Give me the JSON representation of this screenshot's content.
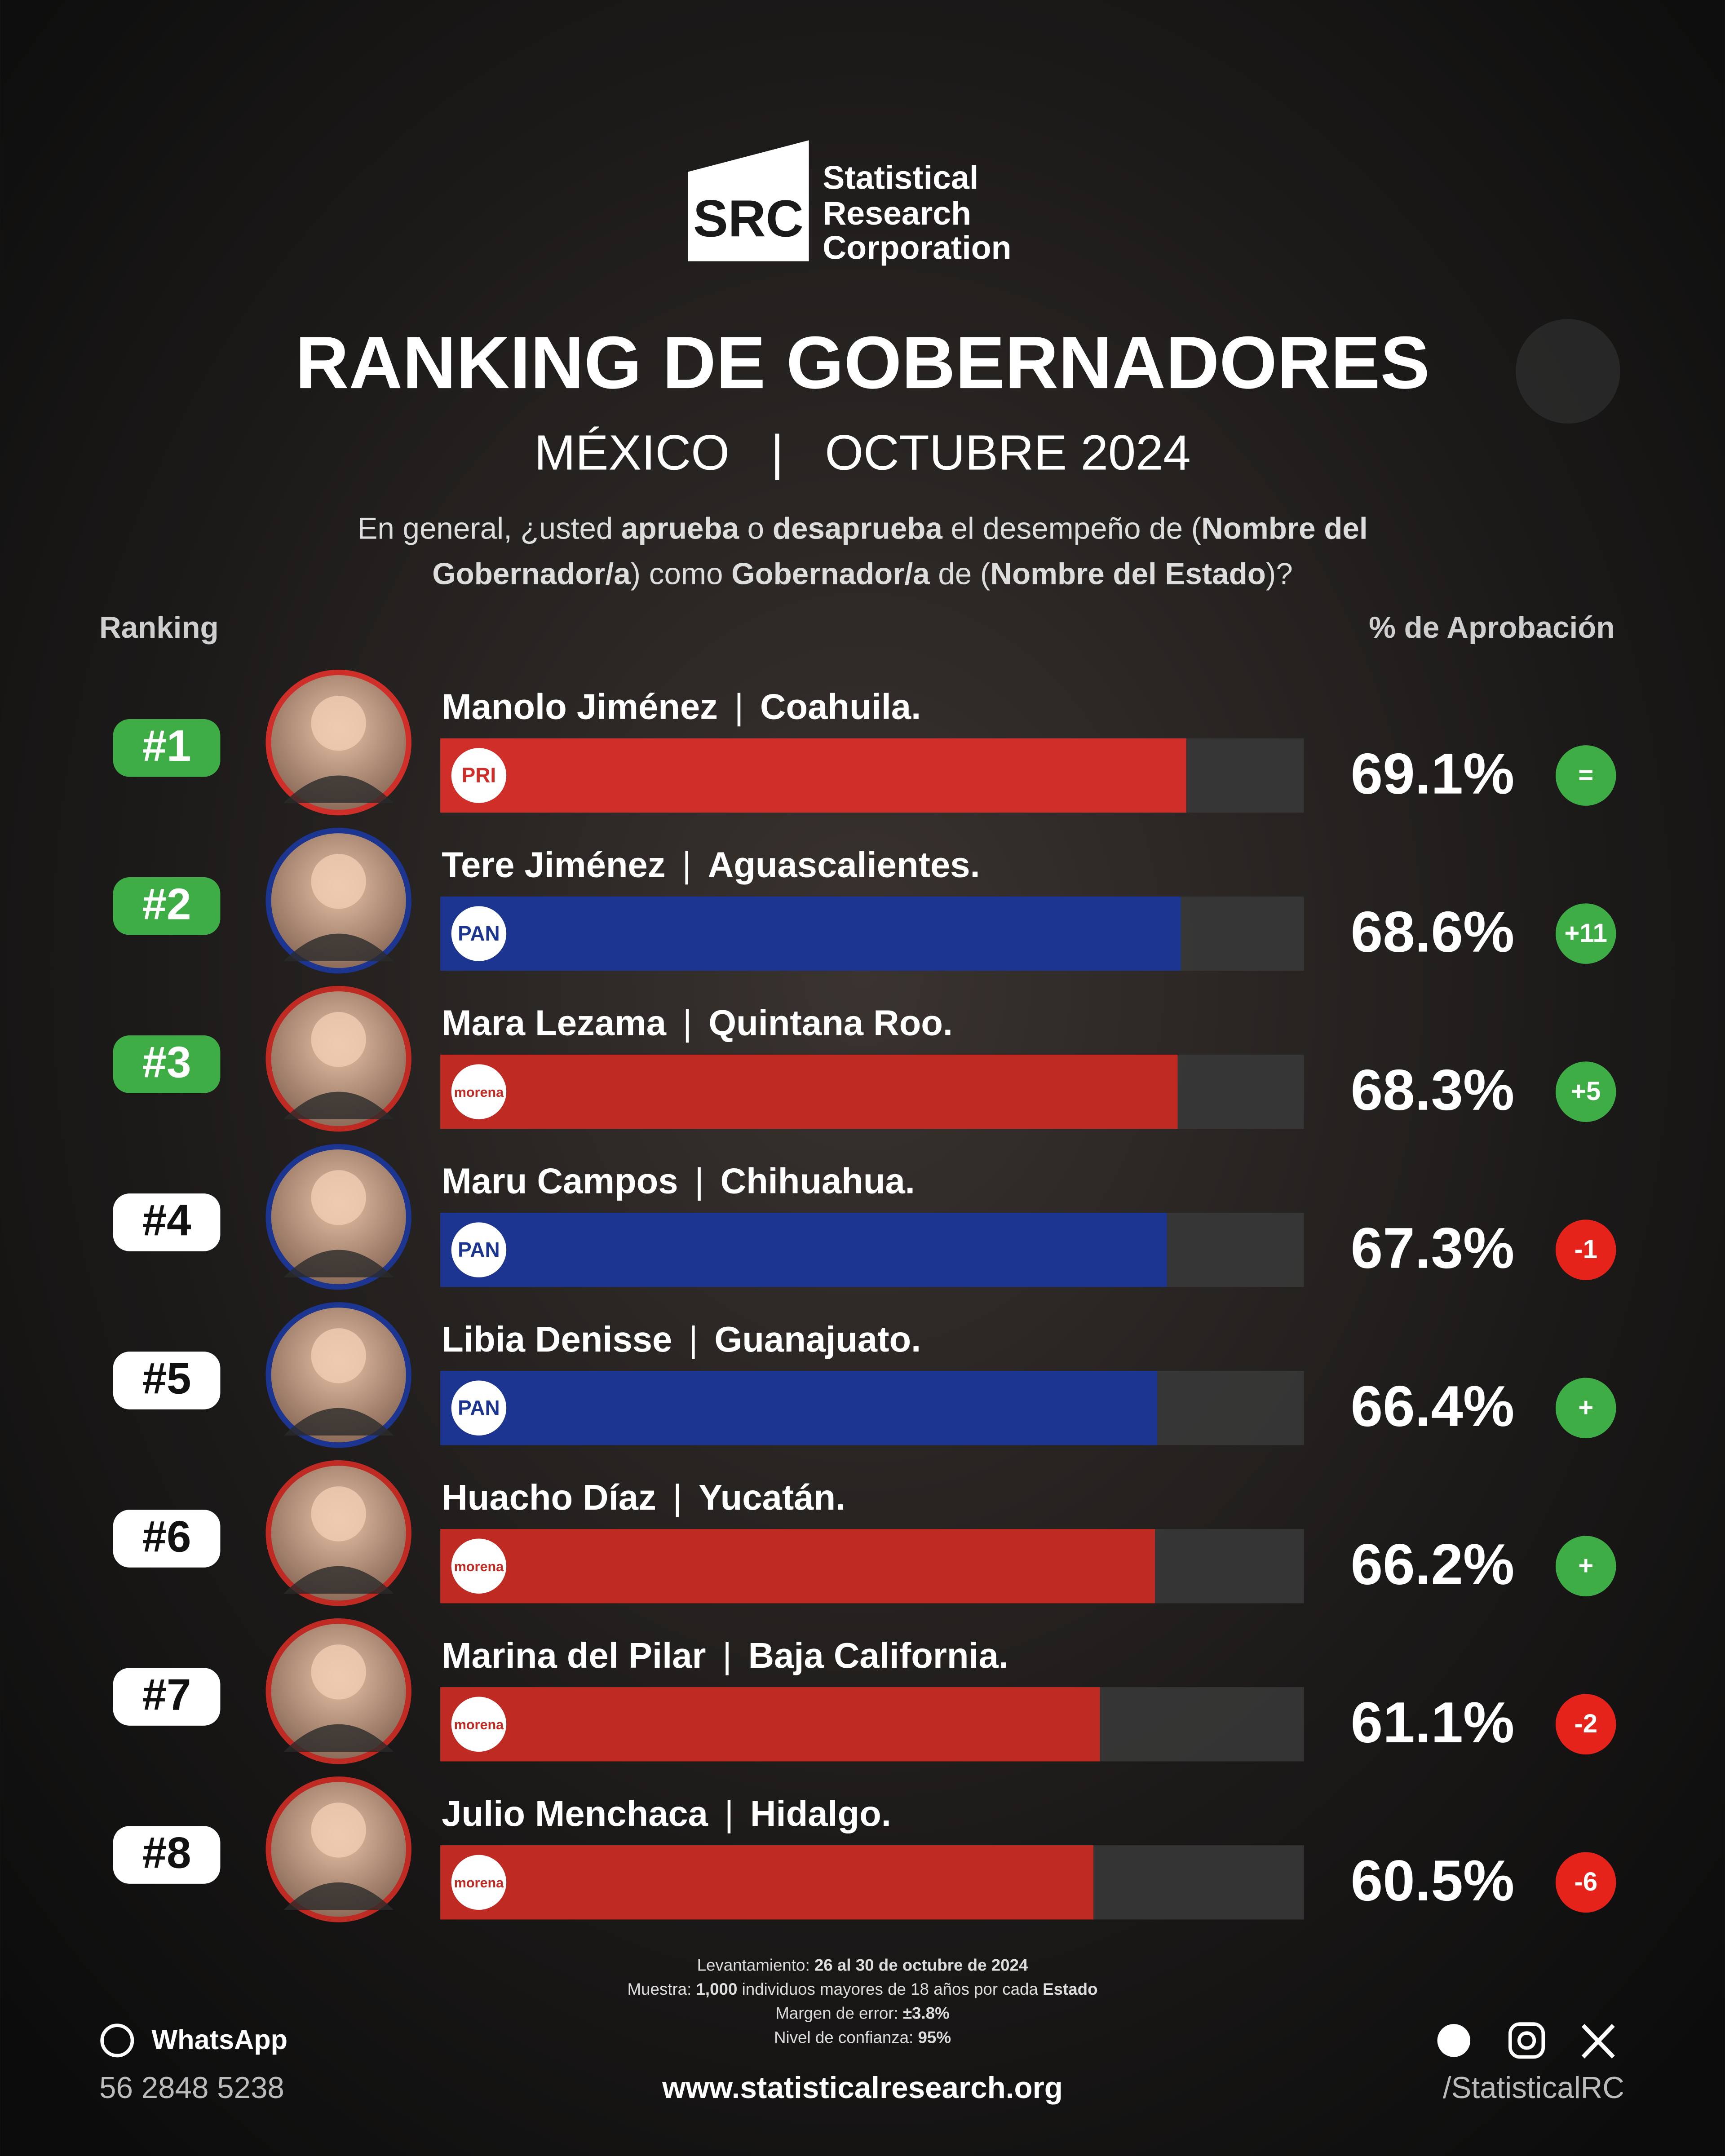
{
  "brand": {
    "logo": "SRC",
    "name": [
      "Statistical",
      "Research",
      "Corporation"
    ]
  },
  "chart_data": {
    "type": "bar",
    "orientation": "horizontal",
    "title": "RANKING DE GOBERNADORES",
    "subtitle": "MÉXICO   |   OCTUBRE 2024",
    "question": [
      [
        {
          "text": "En general, ¿usted ",
          "bold": false
        },
        {
          "text": "aprueba",
          "bold": true
        },
        {
          "text": " o ",
          "bold": false
        },
        {
          "text": "desaprueba",
          "bold": true
        },
        {
          "text": " el desempeño de (",
          "bold": false
        },
        {
          "text": "Nombre del",
          "bold": true
        }
      ],
      [
        {
          "text": "Gobernador/a",
          "bold": true
        },
        {
          "text": ") como ",
          "bold": false
        },
        {
          "text": "Gobernador/a",
          "bold": true
        },
        {
          "text": " de (",
          "bold": false
        },
        {
          "text": "Nombre del Estado",
          "bold": true
        },
        {
          "text": ")?",
          "bold": false
        }
      ]
    ],
    "rank_header": "Ranking",
    "value_header": "% de Aprobación",
    "separator": "|",
    "ranks": [
      "#1",
      "#2",
      "#3",
      "#4",
      "#5",
      "#6",
      "#7",
      "#8"
    ],
    "rank_styles": [
      "green",
      "green",
      "green",
      "white",
      "white",
      "white",
      "white",
      "white"
    ],
    "categories": [
      "Manolo Jiménez",
      "Tere Jiménez",
      "Mara Lezama",
      "Maru Campos",
      "Libia Denisse",
      "Huacho Díaz",
      "Marina del Pilar",
      "Julio Menchaca"
    ],
    "states": [
      "Coahuila.",
      "Aguascalientes.",
      "Quintana Roo.",
      "Chihuahua.",
      "Guanajuato.",
      "Yucatán.",
      "Baja California.",
      "Hidalgo."
    ],
    "parties": [
      "PRI",
      "PAN",
      "morena",
      "PAN",
      "PAN",
      "morena",
      "morena",
      "morena"
    ],
    "colors": [
      "#cf2f28",
      "#1b3591",
      "#bf2a22",
      "#1b3591",
      "#1b3591",
      "#bf2a22",
      "#bf2a22",
      "#bf2a22"
    ],
    "values": [
      69.1,
      68.6,
      68.3,
      67.3,
      66.4,
      66.2,
      61.1,
      60.5
    ],
    "value_labels": [
      "69.1%",
      "68.6%",
      "68.3%",
      "67.3%",
      "66.4%",
      "66.2%",
      "61.1%",
      "60.5%"
    ],
    "changes": [
      "=",
      "+11",
      "+5",
      "-1",
      "+",
      "+",
      "-2",
      "-6"
    ],
    "change_colors": [
      "#3ead45",
      "#3ead45",
      "#3ead45",
      "#e5231b",
      "#3ead45",
      "#3ead45",
      "#e5231b",
      "#e5231b"
    ],
    "xlim": [
      0,
      80
    ]
  },
  "footer": {
    "survey": [
      [
        {
          "text": "Levantamiento: ",
          "bold": false
        },
        {
          "text": "26 al 30 de octubre de 2024",
          "bold": true
        }
      ],
      [
        {
          "text": "Muestra: ",
          "bold": false
        },
        {
          "text": "1,000",
          "bold": true
        },
        {
          "text": " individuos mayores de 18 años por cada ",
          "bold": false
        },
        {
          "text": "Estado",
          "bold": true
        }
      ],
      [
        {
          "text": "Margen de error: ",
          "bold": false
        },
        {
          "text": "±3.8%",
          "bold": true
        }
      ],
      [
        {
          "text": "Nivel de confianza: ",
          "bold": false
        },
        {
          "text": "95%",
          "bold": true
        }
      ]
    ],
    "whatsapp": "WhatsApp",
    "phone": "56 2848 5238",
    "website": "www.statisticalresearch.org",
    "handle": "/StatisticalRC"
  }
}
